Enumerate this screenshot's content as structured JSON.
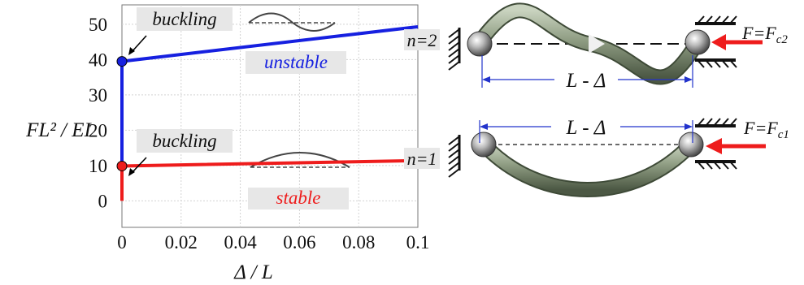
{
  "chart_data": {
    "type": "line",
    "xlabel": "Δ / L",
    "ylabel": "FL² / EI",
    "xlim": [
      0,
      0.1
    ],
    "ylim": [
      0,
      50
    ],
    "x_ticks": [
      "0",
      "0.02",
      "0.04",
      "0.06",
      "0.08",
      "0.1"
    ],
    "y_ticks": [
      "0",
      "10",
      "20",
      "30",
      "40",
      "50"
    ],
    "grid": true,
    "series": [
      {
        "name": "stable",
        "color": "#ee1c1c",
        "points": [
          [
            0,
            0
          ],
          [
            0,
            9.87
          ],
          [
            0.1,
            11.4
          ]
        ]
      },
      {
        "name": "unstable",
        "color": "#1620e0",
        "points": [
          [
            0,
            9.87
          ],
          [
            0,
            39.5
          ],
          [
            0.1,
            49.3
          ]
        ]
      }
    ],
    "buckling_points": [
      {
        "x": 0,
        "y": 9.87,
        "color": "#ee1c1c"
      },
      {
        "x": 0,
        "y": 39.5,
        "color": "#1620e0"
      }
    ],
    "annotations": {
      "buckling_upper": "buckling",
      "buckling_lower": "buckling",
      "unstable": "unstable",
      "stable": "stable"
    }
  },
  "diagram": {
    "mode_upper": {
      "n_label": "n=2",
      "gap_label": "L - Δ",
      "force_label": "F=F",
      "force_sub": "c2"
    },
    "mode_lower": {
      "n_label": "n=1",
      "gap_label": "L - Δ",
      "force_label": "F=F",
      "force_sub": "c1"
    }
  }
}
